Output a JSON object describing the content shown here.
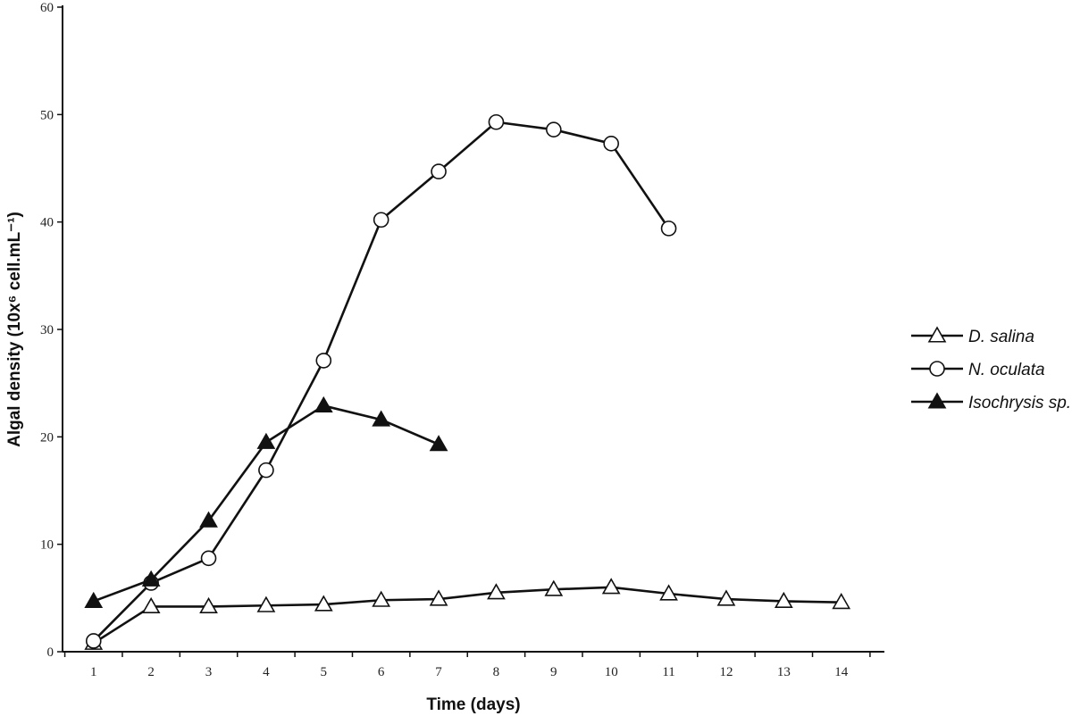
{
  "chart_data": {
    "type": "line",
    "xlabel": "Time (days)",
    "ylabel": "Algal density (10x⁶ cell.mL⁻¹)",
    "ylim": [
      0,
      60
    ],
    "yticks": [
      0,
      10,
      20,
      30,
      40,
      50,
      60
    ],
    "ytick_labels": [
      "0",
      "10",
      "20",
      "30",
      "40",
      "50",
      "60"
    ],
    "xticks": [
      1,
      2,
      3,
      4,
      5,
      6,
      7,
      8,
      9,
      10,
      11,
      12,
      13,
      14
    ],
    "xtick_labels": [
      "1",
      "2",
      "3",
      "4",
      "5",
      "6",
      "7",
      "8",
      "9",
      "10",
      "11",
      "12",
      "13",
      "14"
    ],
    "grid": false,
    "legend_position": "right",
    "series": [
      {
        "name": "D. salina",
        "marker": "open-triangle",
        "x": [
          1,
          2,
          3,
          4,
          5,
          6,
          7,
          8,
          9,
          10,
          11,
          12,
          13,
          14
        ],
        "values": [
          0.8,
          4.2,
          4.2,
          4.3,
          4.4,
          4.8,
          4.9,
          5.5,
          5.8,
          6.0,
          5.4,
          4.9,
          4.7,
          4.6
        ]
      },
      {
        "name": "N. oculata",
        "marker": "open-circle",
        "x": [
          1,
          2,
          3,
          4,
          5,
          6,
          7,
          8,
          9,
          10,
          11
        ],
        "values": [
          1.0,
          6.4,
          8.7,
          16.9,
          27.1,
          40.2,
          44.7,
          49.3,
          48.6,
          47.3,
          39.4
        ]
      },
      {
        "name": "Isochrysis sp.",
        "marker": "filled-triangle",
        "x": [
          1,
          2,
          3,
          4,
          5,
          6,
          7
        ],
        "values": [
          4.7,
          6.7,
          12.2,
          19.5,
          22.9,
          21.6,
          19.3
        ]
      }
    ]
  }
}
